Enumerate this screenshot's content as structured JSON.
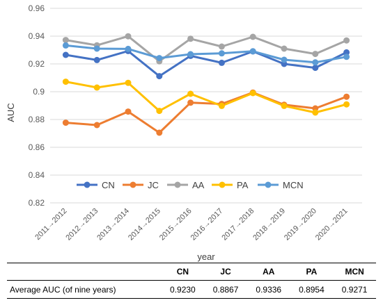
{
  "chart_data": {
    "type": "line",
    "xlabel": "year",
    "ylabel": "AUC",
    "categories": [
      "2011→2012",
      "2012→2013",
      "2013→2014",
      "2014→2015",
      "2015→2016",
      "2016→2017",
      "2017→2018",
      "2018→2019",
      "2019→2020",
      "2020→2021"
    ],
    "ylim": [
      0.82,
      0.96
    ],
    "yticks": [
      "0.82",
      "0.84",
      "0.86",
      "0.88",
      "0.9",
      "0.92",
      "0.94",
      "0.96"
    ],
    "grid": true,
    "legend_position": "inside-bottom-center",
    "series": [
      {
        "name": "CN",
        "color": "#4472C4",
        "values": [
          0.9265,
          0.9228,
          0.9293,
          0.9112,
          0.9258,
          0.9208,
          0.929,
          0.92,
          0.9172,
          0.9283
        ]
      },
      {
        "name": "JC",
        "color": "#ED7D31",
        "values": [
          0.8777,
          0.876,
          0.8857,
          0.8705,
          0.8921,
          0.8912,
          0.8994,
          0.8906,
          0.888,
          0.8964
        ]
      },
      {
        "name": "AA",
        "color": "#A5A5A5",
        "values": [
          0.9372,
          0.9334,
          0.9399,
          0.9219,
          0.9381,
          0.9325,
          0.9395,
          0.931,
          0.9272,
          0.9369
        ]
      },
      {
        "name": "PA",
        "color": "#FFC000",
        "values": [
          0.9072,
          0.903,
          0.9064,
          0.8862,
          0.8985,
          0.8898,
          0.899,
          0.8898,
          0.885,
          0.8909
        ]
      },
      {
        "name": "MCN",
        "color": "#5B9BD5",
        "values": [
          0.9333,
          0.931,
          0.9308,
          0.9242,
          0.927,
          0.9276,
          0.9291,
          0.923,
          0.9211,
          0.9251
        ]
      }
    ]
  },
  "summary_table": {
    "row_label": "Average AUC (of nine years)",
    "columns": [
      "CN",
      "JC",
      "AA",
      "PA",
      "MCN"
    ],
    "values": [
      "0.9230",
      "0.8867",
      "0.9336",
      "0.8954",
      "0.9271"
    ]
  }
}
